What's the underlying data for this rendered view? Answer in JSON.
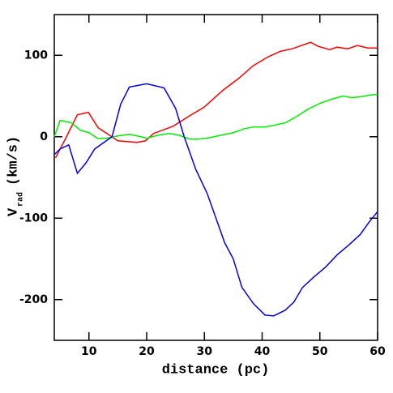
{
  "chart_data": {
    "type": "line",
    "xlabel": "distance (pc)",
    "ylabel": "V",
    "ylabel_sub": "rad",
    "ylabel_unit": "(km/s)",
    "xlim": [
      4,
      60
    ],
    "xticks": [
      10,
      20,
      30,
      40,
      50,
      60
    ],
    "ylim": [
      -250,
      150
    ],
    "yticks": [
      -200,
      -100,
      0,
      100
    ],
    "series": [
      {
        "color": "#ff0000",
        "x": [
          4.2,
          5.9,
          8,
          9.9,
          11.6,
          13.1,
          15,
          18.3,
          19.8,
          21.2,
          24.6,
          27.5,
          29.9,
          33.2,
          36,
          38.4,
          41,
          43.2,
          45.2,
          48.4,
          49.7,
          51.7,
          53,
          54.8,
          56.5,
          58.3,
          60
        ],
        "values": [
          -26,
          -3,
          27,
          30,
          11,
          4,
          -5,
          -7,
          -5,
          4,
          13,
          26,
          36,
          57,
          72,
          87,
          98,
          105,
          108,
          116,
          111,
          107,
          110,
          108,
          112,
          109,
          109
        ]
      },
      {
        "color": "#00ee00",
        "x": [
          4,
          5,
          7,
          8.5,
          10,
          11.5,
          13,
          15,
          17,
          19,
          20,
          22,
          24,
          25.5,
          27.5,
          29,
          31,
          33,
          35,
          37,
          38.5,
          40.5,
          42,
          44,
          46,
          48,
          50,
          52,
          54,
          55.5,
          57,
          58.5,
          60
        ],
        "values": [
          0,
          20,
          17,
          8,
          5,
          -2,
          -2,
          1,
          3,
          0,
          -2,
          2,
          4,
          2,
          -3,
          -3,
          -1,
          2,
          5,
          10,
          12,
          12,
          14,
          17,
          25,
          34,
          41,
          46,
          50,
          48,
          49,
          51,
          52
        ]
      },
      {
        "color": "#0000ee",
        "x": [
          4,
          5,
          6.5,
          8,
          9.5,
          11,
          13,
          14,
          15.5,
          17,
          20,
          23,
          25,
          26.5,
          28.5,
          30.5,
          32,
          33.5,
          35,
          36.5,
          38.5,
          40.5,
          42,
          44,
          45.5,
          47,
          49,
          51,
          53,
          55,
          57,
          58.5,
          60
        ],
        "values": [
          -22,
          -15,
          -10,
          -45,
          -32,
          -15,
          -5,
          0,
          40,
          61,
          65,
          60,
          35,
          0,
          -40,
          -70,
          -100,
          -130,
          -150,
          -185,
          -205,
          -219,
          -220,
          -213,
          -203,
          -185,
          -172,
          -160,
          -145,
          -133,
          -120,
          -105,
          -92
        ]
      }
    ]
  }
}
